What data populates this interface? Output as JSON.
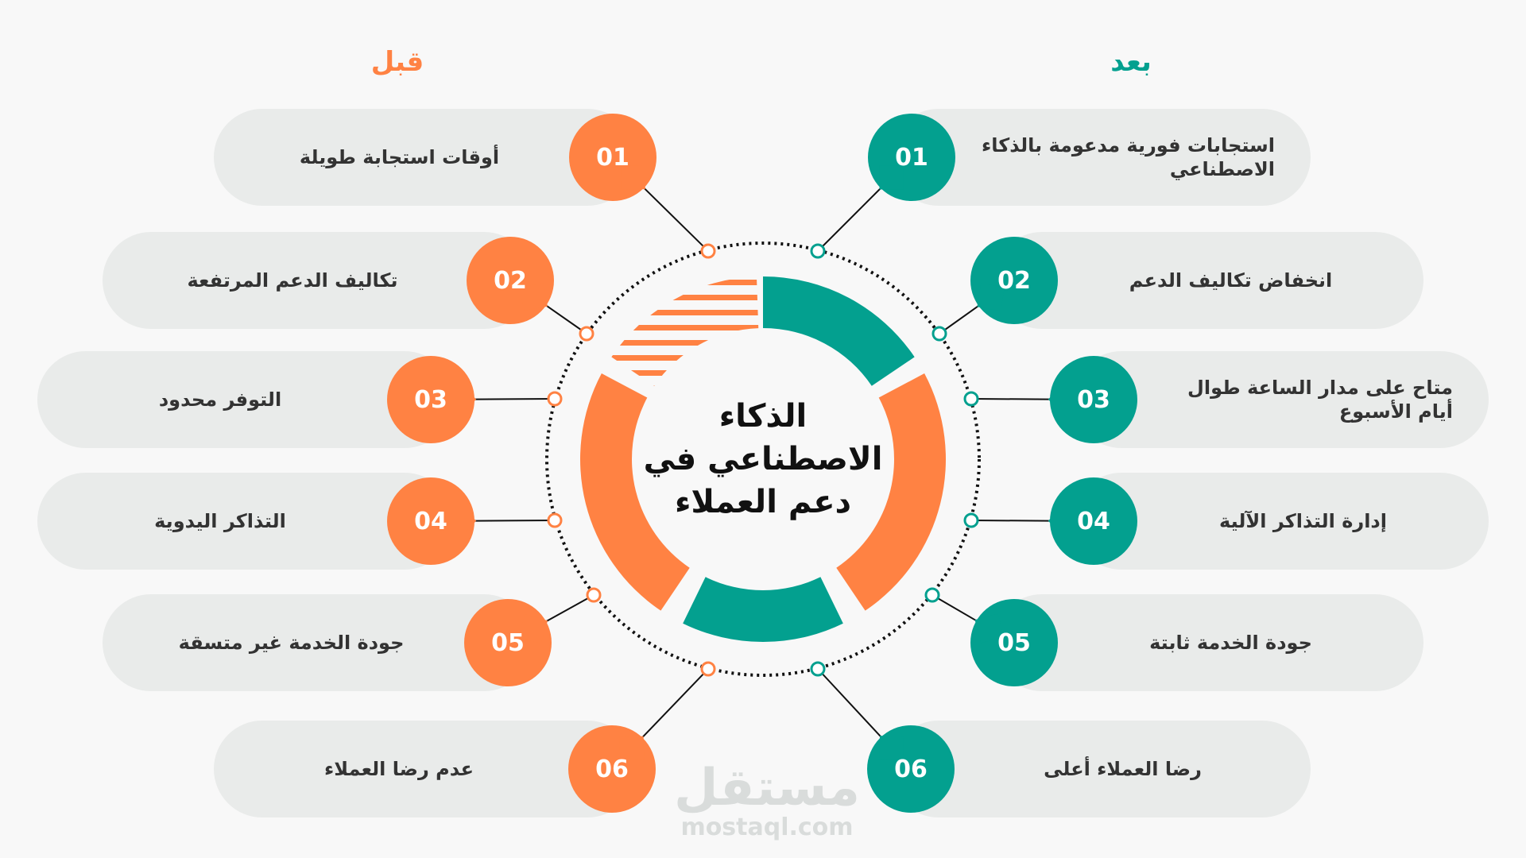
{
  "colors": {
    "before": "#FF8243",
    "after": "#03A08F",
    "pill": "#e9ebea",
    "text": "#333333"
  },
  "headers": {
    "before": "قبل",
    "after": "بعد"
  },
  "title": "الذكاء الاصطناعي في دعم العملاء",
  "before": [
    {
      "num": "01",
      "text": "أوقات استجابة طويلة"
    },
    {
      "num": "02",
      "text": "تكاليف الدعم المرتفعة"
    },
    {
      "num": "03",
      "text": "التوفر محدود"
    },
    {
      "num": "04",
      "text": "التذاكر اليدوية"
    },
    {
      "num": "05",
      "text": "جودة الخدمة غير متسقة"
    },
    {
      "num": "06",
      "text": "عدم رضا العملاء"
    }
  ],
  "after": [
    {
      "num": "01",
      "text": "استجابات فورية مدعومة بالذكاء الاصطناعي"
    },
    {
      "num": "02",
      "text": "انخفاض تكاليف الدعم"
    },
    {
      "num": "03",
      "text": "متاح على مدار الساعة طوال أيام الأسبوع"
    },
    {
      "num": "04",
      "text": "إدارة التذاكر الآلية"
    },
    {
      "num": "05",
      "text": "جودة الخدمة ثابتة"
    },
    {
      "num": "06",
      "text": "رضا العملاء أعلى"
    }
  ],
  "watermark": {
    "arabic": "مستقل",
    "latin": "mostaql.com"
  }
}
